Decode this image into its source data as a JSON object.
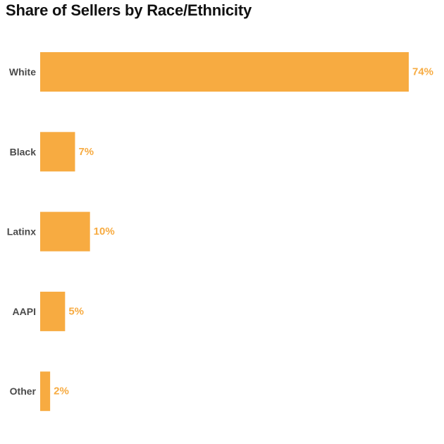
{
  "chart_data": {
    "type": "bar",
    "orientation": "horizontal",
    "title": "Share of Sellers by Race/Ethnicity",
    "categories": [
      "White",
      "Black",
      "Latinx",
      "AAPI",
      "Other"
    ],
    "values": [
      74,
      7,
      10,
      5,
      2
    ],
    "value_labels": [
      "74%",
      "7%",
      "10%",
      "5%",
      "2%"
    ],
    "unit": "%",
    "xlim": [
      0,
      74
    ],
    "grid": false,
    "legend": "none",
    "bar_color": "#F7AB41",
    "label_color": "#F7AB41",
    "category_color": "#4A4A4A"
  }
}
